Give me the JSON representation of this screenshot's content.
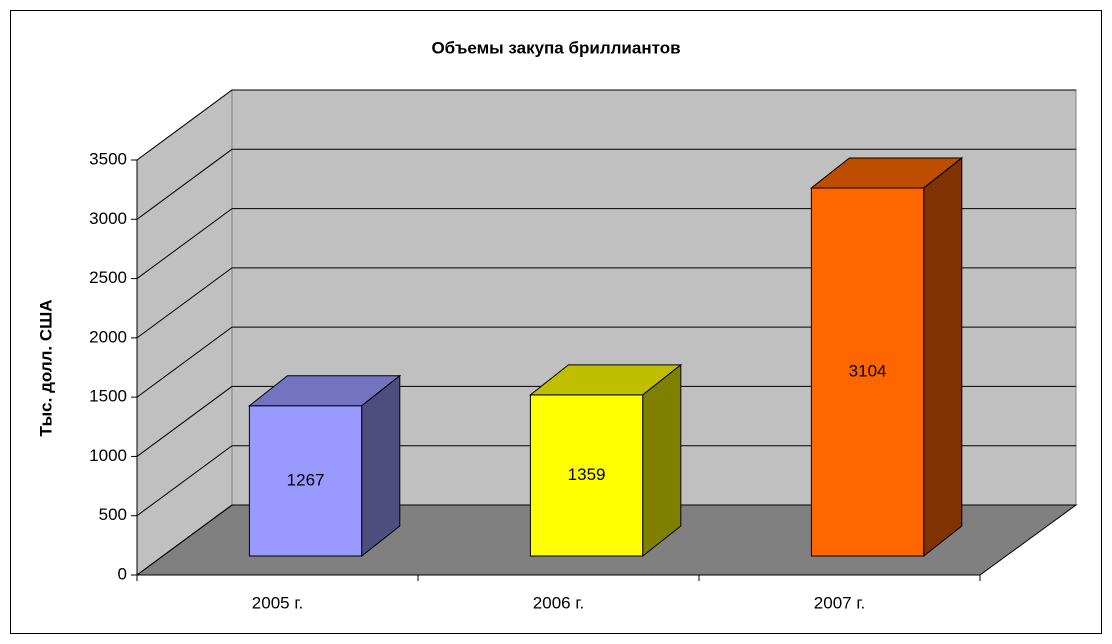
{
  "chart_data": {
    "type": "bar",
    "title": "Объемы закупа бриллиантов",
    "ylabel": "Тыс. долл. США",
    "categories": [
      "2005 г.",
      "2006 г.",
      "2007 г."
    ],
    "values": [
      1267,
      1359,
      3104
    ],
    "colors": [
      "#9999ff",
      "#ffff00",
      "#ff6600"
    ],
    "ylim": [
      0,
      3500
    ],
    "yticks": [
      0,
      500,
      1000,
      1500,
      2000,
      2500,
      3000,
      3500
    ],
    "grid": true
  }
}
